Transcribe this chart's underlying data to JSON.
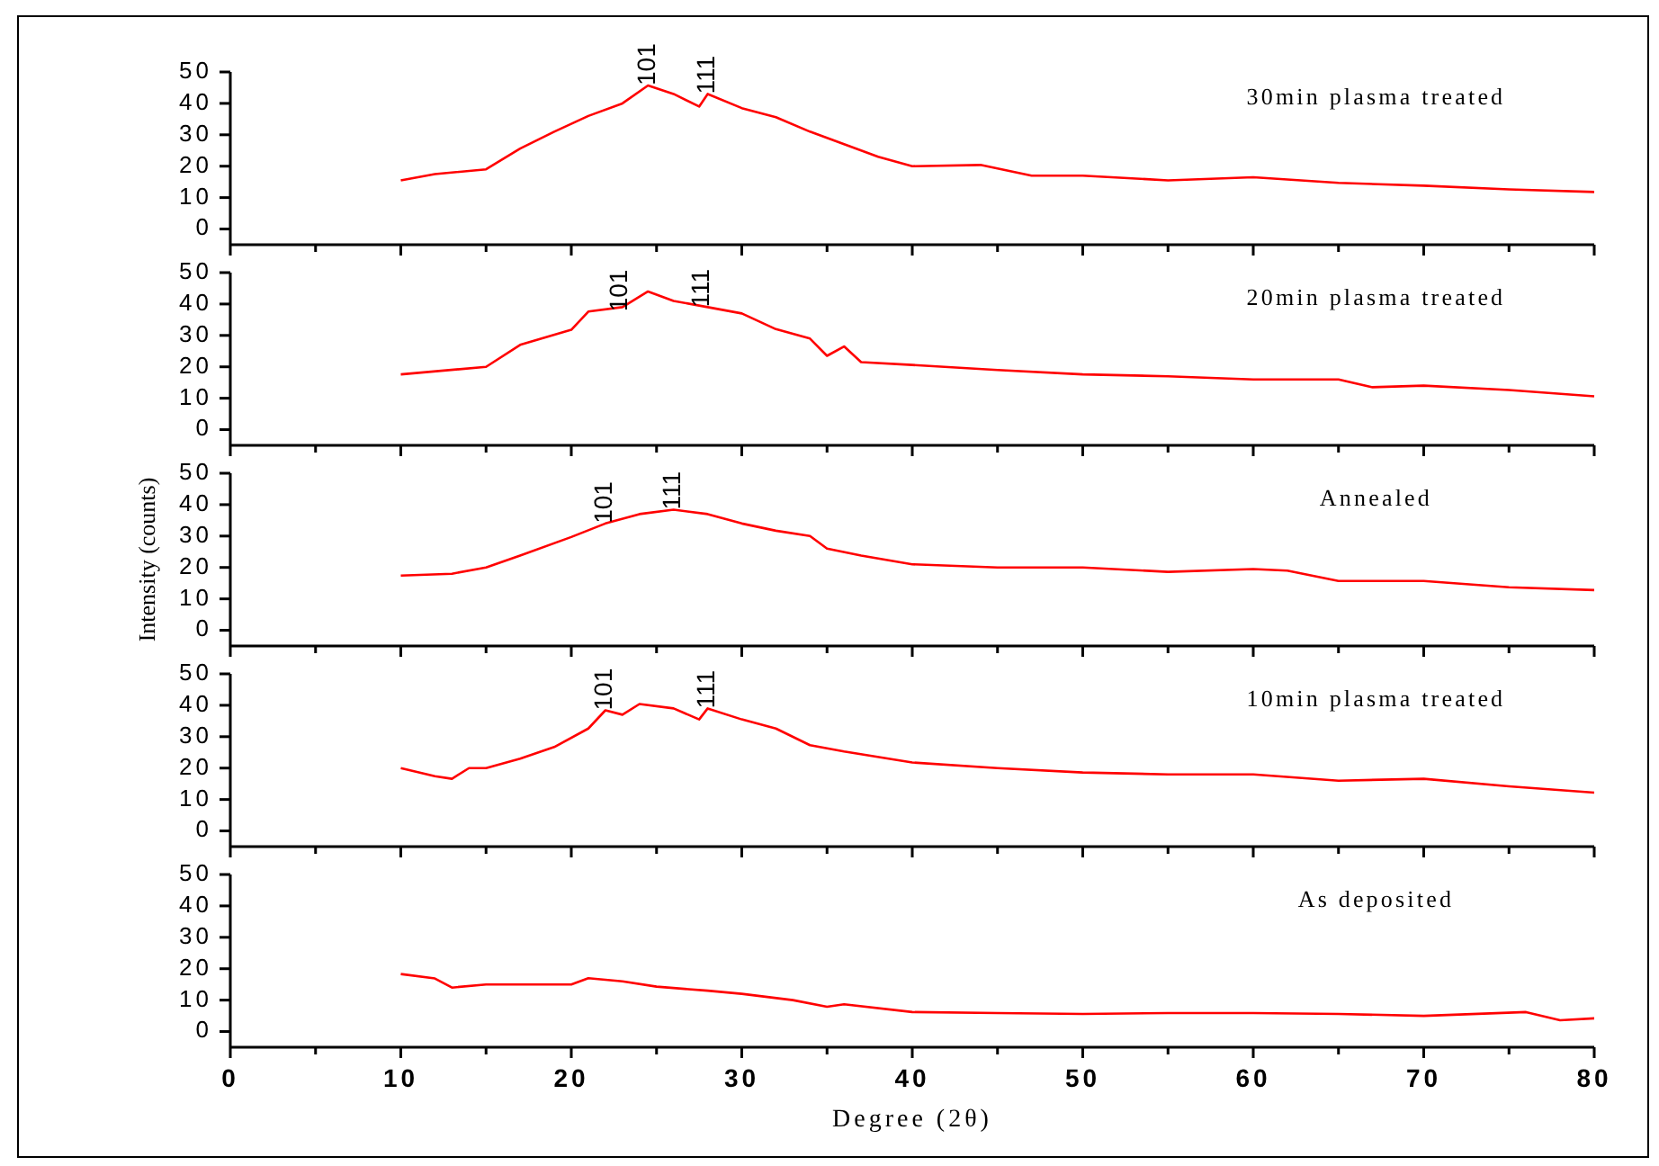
{
  "chart_data": [
    {
      "type": "line",
      "series": [
        {
          "name": "30min plasma treated",
          "color": "#ff0000",
          "x": [
            10,
            12,
            15,
            17,
            19,
            21,
            23,
            24.5,
            26,
            27.5,
            28,
            30,
            32,
            34,
            36,
            38,
            40,
            44,
            47,
            50,
            55,
            60,
            65,
            70,
            75,
            80
          ],
          "values": [
            15.5,
            17.5,
            19,
            25.6,
            31,
            36,
            40,
            45.7,
            43,
            39,
            43,
            38.5,
            35.6,
            31,
            27,
            23,
            20,
            20.4,
            17,
            17,
            15.5,
            16.5,
            14.7,
            13.8,
            12.6,
            11.8
          ]
        }
      ],
      "xlim": [
        0,
        80
      ],
      "xticks": [
        0,
        {
          "value": 5,
          "label": null
        },
        10,
        {
          "value": 15,
          "label": null
        },
        20,
        {
          "value": 25,
          "label": null
        },
        30,
        {
          "value": 35,
          "label": null
        },
        40,
        {
          "value": 45,
          "label": null
        },
        50,
        {
          "value": 55,
          "label": null
        },
        60,
        {
          "value": 65,
          "label": null
        },
        70,
        {
          "value": 75,
          "label": null
        },
        80
      ],
      "ylim": [
        -5,
        50
      ],
      "yticks": [
        0,
        10,
        20,
        30,
        40,
        50
      ],
      "tick_labels": "y",
      "annotations": [
        {
          "text": "101",
          "x": 24.5,
          "y": 45.7
        },
        {
          "text": "111",
          "x": 28,
          "y": 43
        }
      ]
    },
    {
      "type": "line",
      "series": [
        {
          "name": "20min plasma treated",
          "color": "#ff0000",
          "x": [
            10,
            15,
            17,
            20,
            21,
            23,
            24.5,
            26,
            28,
            30,
            32,
            34,
            35,
            36,
            37,
            40,
            45,
            50,
            55,
            60,
            65,
            67,
            70,
            75,
            80
          ],
          "values": [
            17.6,
            20,
            27,
            31.8,
            37.6,
            39,
            44,
            41,
            39,
            37,
            32,
            29,
            23.5,
            26.5,
            21.5,
            20.6,
            19,
            17.6,
            17,
            16,
            16,
            13.5,
            14,
            12.6,
            10.6
          ]
        }
      ],
      "xlim": [
        0,
        80
      ],
      "xticks": [
        0,
        {
          "value": 5,
          "label": null
        },
        10,
        {
          "value": 15,
          "label": null
        },
        20,
        {
          "value": 25,
          "label": null
        },
        30,
        {
          "value": 35,
          "label": null
        },
        40,
        {
          "value": 45,
          "label": null
        },
        50,
        {
          "value": 55,
          "label": null
        },
        60,
        {
          "value": 65,
          "label": null
        },
        70,
        {
          "value": 75,
          "label": null
        },
        80
      ],
      "ylim": [
        -5,
        50
      ],
      "yticks": [
        0,
        10,
        20,
        30,
        40,
        50
      ],
      "tick_labels": "y",
      "annotations": [
        {
          "text": "101",
          "x": 22.9,
          "y": 37.6
        },
        {
          "text": "111",
          "x": 27.7,
          "y": 39
        }
      ]
    },
    {
      "type": "line",
      "series": [
        {
          "name": "Annealed",
          "color": "#ff0000",
          "x": [
            10,
            13,
            15,
            17,
            20,
            22,
            24,
            26,
            28,
            30,
            32,
            34,
            35,
            37,
            40,
            45,
            50,
            55,
            60,
            62,
            65,
            70,
            75,
            80
          ],
          "values": [
            17.4,
            18,
            20,
            23.8,
            29.7,
            34,
            37,
            38.4,
            37,
            34,
            31.7,
            30,
            26,
            23.8,
            21,
            20,
            20,
            18.6,
            19.5,
            19,
            15.7,
            15.7,
            13.7,
            12.8
          ]
        }
      ],
      "xlim": [
        0,
        80
      ],
      "xticks": [
        0,
        {
          "value": 5,
          "label": null
        },
        10,
        {
          "value": 15,
          "label": null
        },
        20,
        {
          "value": 25,
          "label": null
        },
        30,
        {
          "value": 35,
          "label": null
        },
        40,
        {
          "value": 45,
          "label": null
        },
        50,
        {
          "value": 55,
          "label": null
        },
        60,
        {
          "value": 65,
          "label": null
        },
        70,
        {
          "value": 75,
          "label": null
        },
        80
      ],
      "ylim": [
        -5,
        50
      ],
      "yticks": [
        0,
        10,
        20,
        30,
        40,
        50
      ],
      "tick_labels": "y",
      "ylabel": "Intensity (counts)",
      "annotations": [
        {
          "text": "101",
          "x": 22,
          "y": 34
        },
        {
          "text": "111",
          "x": 26,
          "y": 38.4
        }
      ]
    },
    {
      "type": "line",
      "series": [
        {
          "name": "10min plasma treated",
          "color": "#ff0000",
          "x": [
            10,
            12,
            13,
            14,
            15,
            17,
            19,
            21,
            22,
            23,
            24,
            26,
            27.5,
            28,
            30,
            32,
            34,
            36,
            40,
            45,
            50,
            55,
            60,
            65,
            70,
            75,
            80
          ],
          "values": [
            20,
            17.4,
            16.6,
            20,
            20,
            23,
            26.7,
            32.6,
            38.4,
            37,
            40.4,
            39,
            35.5,
            39,
            35.5,
            32.6,
            27.3,
            25.3,
            21.8,
            20,
            18.6,
            18,
            18,
            16,
            16.6,
            14.2,
            12.2
          ]
        }
      ],
      "xlim": [
        0,
        80
      ],
      "xticks": [
        0,
        {
          "value": 5,
          "label": null
        },
        10,
        {
          "value": 15,
          "label": null
        },
        20,
        {
          "value": 25,
          "label": null
        },
        30,
        {
          "value": 35,
          "label": null
        },
        40,
        {
          "value": 45,
          "label": null
        },
        50,
        {
          "value": 55,
          "label": null
        },
        60,
        {
          "value": 65,
          "label": null
        },
        70,
        {
          "value": 75,
          "label": null
        },
        80
      ],
      "ylim": [
        -5,
        50
      ],
      "yticks": [
        0,
        10,
        20,
        30,
        40,
        50
      ],
      "tick_labels": "y",
      "annotations": [
        {
          "text": "101",
          "x": 22,
          "y": 38.4
        },
        {
          "text": "111",
          "x": 28,
          "y": 39
        }
      ]
    },
    {
      "type": "line",
      "series": [
        {
          "name": "As deposited",
          "color": "#ff0000",
          "x": [
            10,
            12,
            13,
            15,
            20,
            21,
            23,
            25,
            28,
            30,
            33,
            35,
            36,
            40,
            45,
            50,
            55,
            60,
            65,
            70,
            76,
            78,
            80
          ],
          "values": [
            18.3,
            16.9,
            14,
            15,
            15,
            17,
            16,
            14.3,
            13,
            12,
            10,
            7.9,
            8.7,
            6.2,
            5.9,
            5.6,
            5.9,
            5.9,
            5.6,
            5,
            6.2,
            3.6,
            4.2
          ]
        }
      ],
      "xlim": [
        0,
        80
      ],
      "xticks": [
        0,
        {
          "value": 5,
          "label": null
        },
        10,
        {
          "value": 15,
          "label": null
        },
        20,
        {
          "value": 25,
          "label": null
        },
        30,
        {
          "value": 35,
          "label": null
        },
        40,
        {
          "value": 45,
          "label": null
        },
        50,
        {
          "value": 55,
          "label": null
        },
        60,
        {
          "value": 65,
          "label": null
        },
        70,
        {
          "value": 75,
          "label": null
        },
        80
      ],
      "ylim": [
        -5,
        50
      ],
      "yticks": [
        0,
        10,
        20,
        30,
        40,
        50
      ],
      "xlabel": "Degree (2θ)"
    }
  ]
}
